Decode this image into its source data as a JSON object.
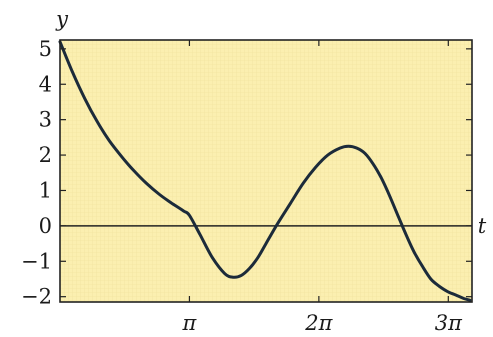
{
  "chart_data": {
    "type": "line",
    "xlabel": "t",
    "ylabel": "y",
    "x_ticks": [
      {
        "value": 3.14159,
        "label": "π"
      },
      {
        "value": 6.28319,
        "label": "2π"
      },
      {
        "value": 9.42478,
        "label": "3π"
      }
    ],
    "y_ticks": [
      {
        "value": 5,
        "label": "5"
      },
      {
        "value": 4,
        "label": "4"
      },
      {
        "value": 3,
        "label": "3"
      },
      {
        "value": 2,
        "label": "2"
      },
      {
        "value": 1,
        "label": "1"
      },
      {
        "value": 0,
        "label": "0"
      },
      {
        "value": -1,
        "label": "−1"
      },
      {
        "value": -2,
        "label": "−2"
      }
    ],
    "xlim": [
      0,
      10.0
    ],
    "ylim": [
      -2.15,
      5.25
    ],
    "grid": true,
    "colors": {
      "plot_background": "#fbefb0",
      "grid": "#efe09a",
      "curve": "#1c2b3a",
      "frame": "#222222"
    },
    "series": [
      {
        "x": [
          0,
          0.3,
          0.6,
          0.9,
          1.2,
          1.5,
          1.8,
          2.1,
          2.4,
          2.7,
          3.0,
          3.14,
          3.4,
          3.7,
          4.0,
          4.2,
          4.4,
          4.6,
          4.8,
          5.0,
          5.3,
          5.6,
          5.9,
          6.2,
          6.5,
          6.8,
          7.0,
          7.2,
          7.4,
          7.6,
          7.8,
          8.0,
          8.2,
          8.4,
          8.6,
          8.8,
          9.0,
          9.2,
          9.4,
          9.6,
          9.8,
          9.95
        ],
        "y": [
          5.2,
          4.35,
          3.6,
          2.95,
          2.4,
          1.95,
          1.55,
          1.2,
          0.9,
          0.65,
          0.42,
          0.3,
          -0.25,
          -0.9,
          -1.35,
          -1.45,
          -1.4,
          -1.2,
          -0.9,
          -0.5,
          0.1,
          0.65,
          1.2,
          1.65,
          2.0,
          2.2,
          2.25,
          2.2,
          2.05,
          1.75,
          1.35,
          0.85,
          0.3,
          -0.25,
          -0.75,
          -1.15,
          -1.5,
          -1.7,
          -1.85,
          -1.95,
          -2.05,
          -2.1
        ]
      }
    ]
  }
}
